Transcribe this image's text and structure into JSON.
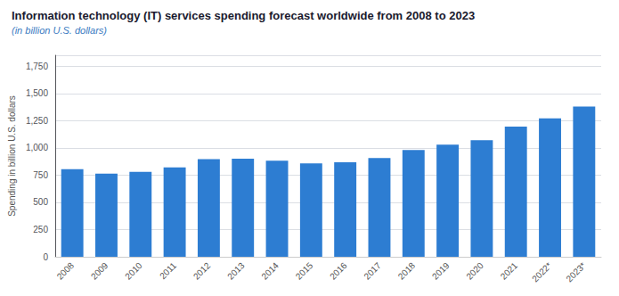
{
  "chart_data": {
    "type": "bar",
    "title": "Information technology (IT) services spending forecast worldwide from 2008 to 2023",
    "subtitle": "(in billion U.S. dollars)",
    "y_label": "Spending in billion U.S. dollars",
    "categories": [
      "2008",
      "2009",
      "2010",
      "2011",
      "2012",
      "2013",
      "2014",
      "2015",
      "2016",
      "2017",
      "2018",
      "2019",
      "2020",
      "2021",
      "2022*",
      "2023*"
    ],
    "values": [
      805,
      763,
      779,
      820,
      896,
      900,
      882,
      858,
      868,
      906,
      980,
      1030,
      1070,
      1195,
      1270,
      1380
    ],
    "color": "#2d7dd2",
    "ylim": [
      0,
      1850
    ],
    "yticks": [
      0,
      250,
      500,
      750,
      {
        "value": 1000,
        "label": "1,000"
      },
      {
        "value": 1250,
        "label": "1,250"
      },
      {
        "value": 1500,
        "label": "1,500"
      },
      {
        "value": 1750,
        "label": "1,750"
      }
    ],
    "grid": true
  }
}
